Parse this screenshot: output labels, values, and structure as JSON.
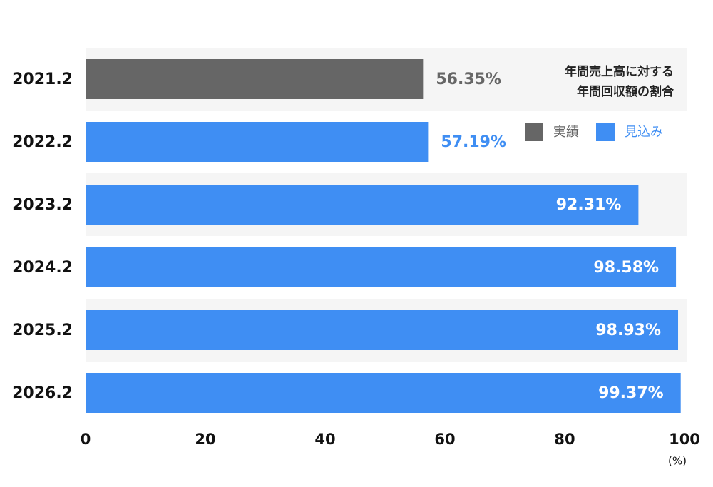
{
  "chart_data": {
    "type": "bar",
    "orientation": "horizontal",
    "title": [
      "年間売上高に対する",
      "年間回収額の割合"
    ],
    "x_label": "(%)",
    "categories": [
      "2021.2",
      "2022.2",
      "2023.2",
      "2024.2",
      "2025.2",
      "2026.2"
    ],
    "values": [
      56.35,
      57.19,
      92.31,
      98.58,
      98.93,
      99.37
    ],
    "value_labels": [
      "56.35%",
      "57.19%",
      "92.31%",
      "98.58%",
      "98.93%",
      "99.37%"
    ],
    "colors": [
      "#666666",
      "#3f8ef3",
      "#3f8ef3",
      "#3f8ef3",
      "#3f8ef3",
      "#3f8ef3"
    ],
    "legend": [
      {
        "name": "実績",
        "color": "#666666"
      },
      {
        "name": "見込み",
        "color": "#3f8ef3"
      }
    ],
    "xlim": [
      0,
      100
    ],
    "xticks": [
      0,
      20,
      40,
      60,
      80,
      100
    ]
  }
}
